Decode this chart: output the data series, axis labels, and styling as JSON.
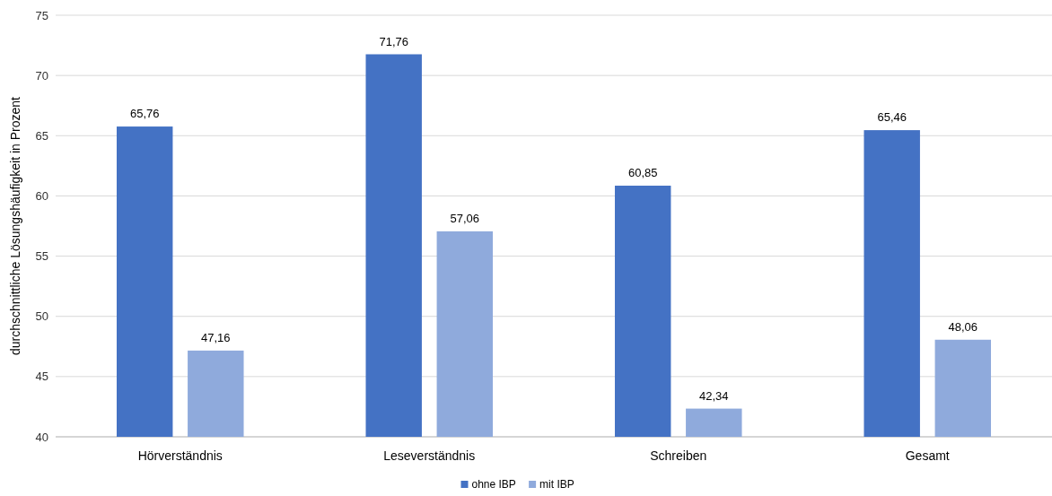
{
  "chart_data": {
    "type": "bar",
    "ylabel": "durchschnittliche Lösungshäufigkeit in Prozent",
    "categories": [
      "Hörverständnis",
      "Leseverständnis",
      "Schreiben",
      "Gesamt"
    ],
    "series": [
      {
        "name": "ohne IBP",
        "color": "#4472c4",
        "values": [
          65.76,
          71.76,
          60.85,
          65.46
        ],
        "value_labels": [
          "65,76",
          "71,76",
          "60,85",
          "65,46"
        ]
      },
      {
        "name": "mit IBP",
        "color": "#8faadc",
        "values": [
          47.16,
          57.06,
          42.34,
          48.06
        ],
        "value_labels": [
          "47,16",
          "57,06",
          "42,34",
          "48,06"
        ]
      }
    ],
    "ylim": [
      40,
      75
    ],
    "yticks": [
      40,
      45,
      50,
      55,
      60,
      65,
      70,
      75
    ],
    "grid": "y",
    "legend": "bottom"
  }
}
